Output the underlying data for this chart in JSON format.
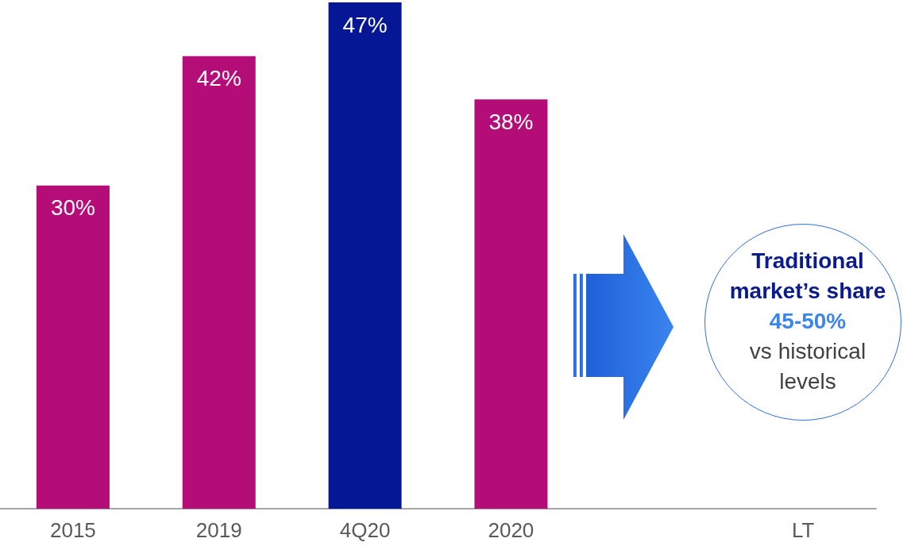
{
  "chart_data": {
    "type": "bar",
    "categories": [
      "2015",
      "2019",
      "4Q20",
      "2020",
      null,
      "LT"
    ],
    "values": [
      30,
      42,
      47,
      38,
      null,
      null
    ],
    "value_labels": [
      "30%",
      "42%",
      "47%",
      "38%",
      null,
      null
    ],
    "colors": [
      "#b50d78",
      "#b50d78",
      "#061795",
      "#b50d78",
      null,
      null
    ],
    "annotations": [
      "Traditional market’s share",
      "45-50%",
      "vs historical levels"
    ]
  }
}
